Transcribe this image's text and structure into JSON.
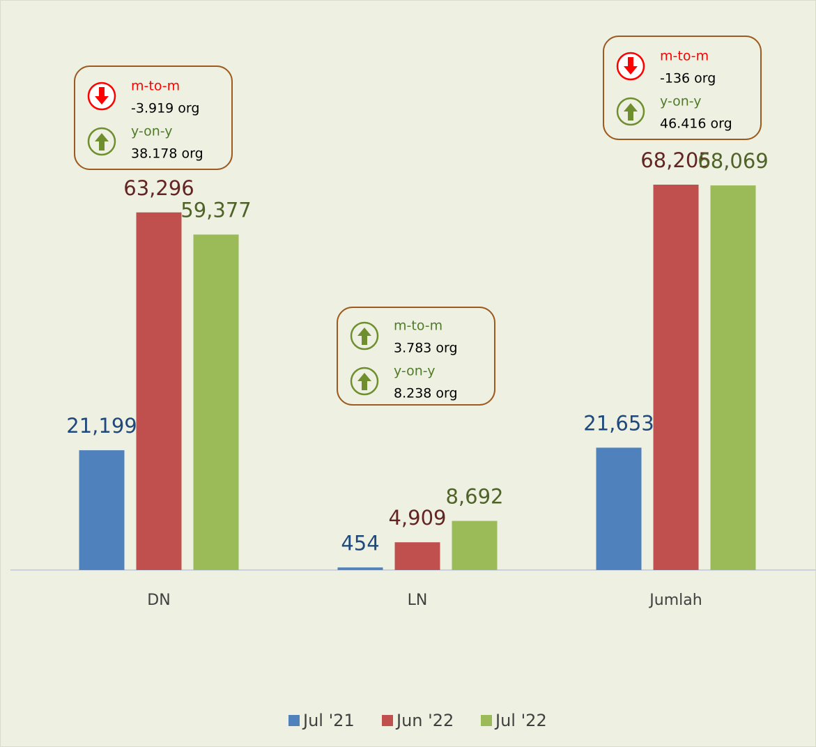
{
  "chart_data": {
    "type": "bar",
    "categories": [
      "DN",
      "LN",
      "Jumlah"
    ],
    "series": [
      {
        "name": "Jul '21",
        "color": "#4f81bd",
        "label_color": "#1f497d",
        "values": [
          21199,
          454,
          21653
        ],
        "value_labels": [
          "21,199",
          "454",
          "21,653"
        ]
      },
      {
        "name": "Jun '22",
        "color": "#c0504d",
        "label_color": "#632523",
        "values": [
          63296,
          4909,
          68205
        ],
        "value_labels": [
          "63,296",
          "4,909",
          "68,205"
        ]
      },
      {
        "name": "Jul '22",
        "color": "#9bbb59",
        "label_color": "#4f6228",
        "values": [
          59377,
          8692,
          68069
        ],
        "value_labels": [
          "59,377",
          "8,692",
          "68,069"
        ]
      }
    ],
    "legend": "bottom",
    "annotations": [
      {
        "items": [
          {
            "label": "m-to-m",
            "value": "-3.919 org",
            "direction": "down"
          },
          {
            "label": "y-on-y",
            "value": "38.178 org",
            "direction": "up"
          }
        ]
      },
      {
        "items": [
          {
            "label": "m-to-m",
            "value": "3.783 org",
            "direction": "up"
          },
          {
            "label": "y-on-y",
            "value": "8.238 org",
            "direction": "up"
          }
        ]
      },
      {
        "items": [
          {
            "label": "m-to-m",
            "value": "-136 org",
            "direction": "down"
          },
          {
            "label": "y-on-y",
            "value": "46.416 org",
            "direction": "up"
          }
        ]
      }
    ]
  }
}
